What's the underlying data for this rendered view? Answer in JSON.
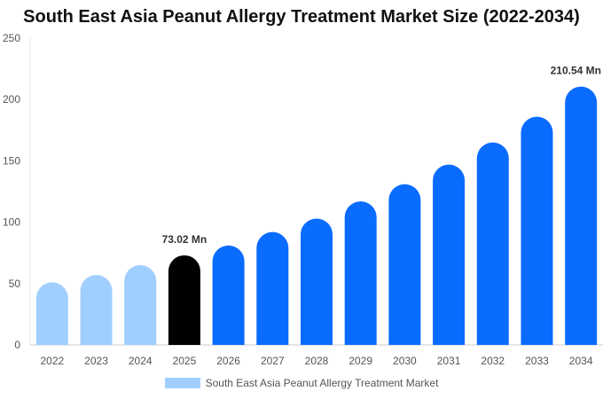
{
  "chart_data": {
    "type": "bar",
    "title": "South East Asia Peanut Allergy Treatment Market Size (2022-2034)",
    "categories": [
      "2022",
      "2023",
      "2024",
      "2025",
      "2026",
      "2027",
      "2028",
      "2029",
      "2030",
      "2031",
      "2032",
      "2033",
      "2034"
    ],
    "series": [
      {
        "name": "South East Asia Peanut Allergy Treatment Market",
        "values": [
          51,
          57,
          65,
          73.02,
          81,
          92,
          103,
          117,
          131,
          147,
          165,
          186,
          210.54
        ]
      }
    ],
    "bar_colors": [
      "#a0cfff",
      "#a0cfff",
      "#a0cfff",
      "#000000",
      "#0a6cff",
      "#0a6cff",
      "#0a6cff",
      "#0a6cff",
      "#0a6cff",
      "#0a6cff",
      "#0a6cff",
      "#0a6cff",
      "#0a6cff"
    ],
    "data_labels": [
      {
        "index": 3,
        "text": "73.02 Mn"
      },
      {
        "index": 12,
        "text": "210.54 Mn"
      }
    ],
    "ylim": [
      0,
      250
    ],
    "yticks": [
      0,
      50,
      100,
      150,
      200,
      250
    ],
    "xlabel": "",
    "ylabel": "",
    "grid": false,
    "legend": {
      "position": "bottom",
      "swatch_color": "#a0cfff"
    }
  }
}
